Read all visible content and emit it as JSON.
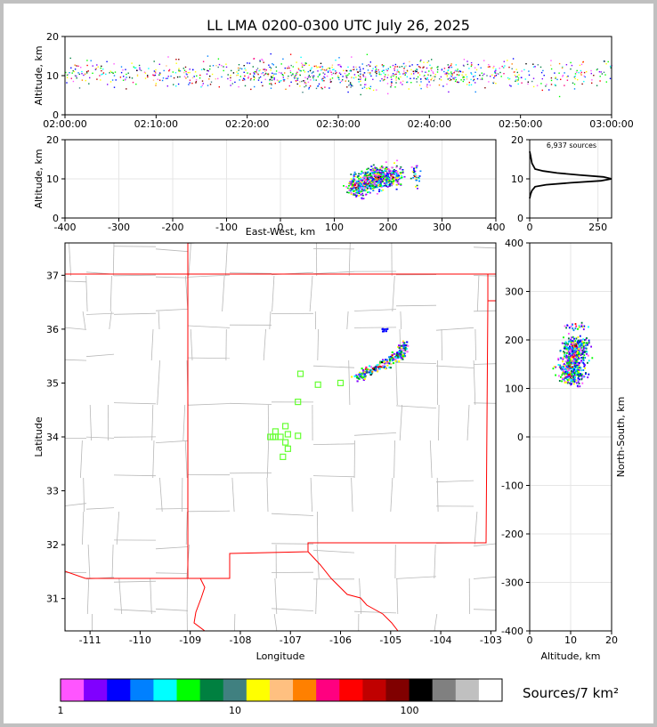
{
  "chart_data": [
    {
      "type": "scatter",
      "panel": "time-height",
      "title": "LL LMA 0200-0300 UTC July 26, 2025",
      "xlabel": "",
      "ylabel": "Altitude, km",
      "xlim": [
        "02:00:00",
        "03:00:00"
      ],
      "ylim": [
        0,
        20
      ],
      "x_ticks": [
        "02:00:00",
        "02:10:00",
        "02:20:00",
        "02:30:00",
        "02:40:00",
        "02:50:00",
        "03:00:00"
      ],
      "y_ticks": [
        "0",
        "10",
        "20"
      ],
      "points_summary": {
        "altitude_center_km": 10.5,
        "altitude_spread_km": [
          4,
          18
        ],
        "time_range": [
          "02:00:00",
          "03:00:00"
        ]
      }
    },
    {
      "type": "scatter",
      "panel": "east-west-height",
      "xlabel": "East-West, km",
      "ylabel": "Altitude, km",
      "xlim": [
        -400,
        400
      ],
      "ylim": [
        0,
        20
      ],
      "x_ticks": [
        "-400",
        "-300",
        "-200",
        "-100",
        "0",
        "100",
        "200",
        "300",
        "400"
      ],
      "y_ticks": [
        "0",
        "10",
        "20"
      ],
      "clusters": [
        {
          "x": 140,
          "y": 8.5
        },
        {
          "x": 160,
          "y": 9.5
        },
        {
          "x": 180,
          "y": 10.5
        },
        {
          "x": 205,
          "y": 11
        },
        {
          "x": 250,
          "y": 11
        }
      ]
    },
    {
      "type": "line",
      "panel": "altitude-histogram",
      "annotation": "6,937 sources",
      "xlim": [
        0,
        300
      ],
      "ylim": [
        0,
        20
      ],
      "x_ticks": [
        "0",
        "250"
      ],
      "y_ticks": [
        "0",
        "10",
        "20"
      ],
      "x": [
        0,
        3,
        8,
        20,
        60,
        150,
        260,
        300,
        270,
        180,
        100,
        50,
        20,
        8,
        3,
        0
      ],
      "y": [
        5,
        6,
        7,
        8,
        8.5,
        9,
        9.5,
        10,
        10.5,
        11,
        11.5,
        12,
        12.5,
        14,
        16,
        17
      ]
    },
    {
      "type": "scatter",
      "panel": "plan-view",
      "xlabel": "Longitude",
      "ylabel": "Latitude",
      "xlim": [
        -111.5,
        -102.9
      ],
      "ylim": [
        30.4,
        37.6
      ],
      "x_ticks": [
        "-111",
        "-110",
        "-109",
        "-108",
        "-107",
        "-106",
        "-105",
        "-104",
        "-103"
      ],
      "y_ticks": [
        "31",
        "32",
        "33",
        "34",
        "35",
        "36",
        "37"
      ],
      "sources_path": [
        [
          -105.7,
          35.1
        ],
        [
          -105.5,
          35.2
        ],
        [
          -105.3,
          35.3
        ],
        [
          -105.0,
          35.45
        ],
        [
          -104.8,
          35.55
        ],
        [
          -104.75,
          35.75
        ]
      ],
      "stations": [
        [
          -107.1,
          34.2
        ],
        [
          -107.3,
          34.1
        ],
        [
          -107.4,
          34.0
        ],
        [
          -107.3,
          34.0
        ],
        [
          -107.2,
          34.0
        ],
        [
          -107.05,
          34.05
        ],
        [
          -106.85,
          34.02
        ],
        [
          -107.1,
          33.9
        ],
        [
          -107.05,
          33.78
        ],
        [
          -107.15,
          33.63
        ],
        [
          -106.85,
          34.65
        ],
        [
          -106.8,
          35.17
        ],
        [
          -106.45,
          34.97
        ],
        [
          -106.0,
          35.0
        ],
        [
          -107.35,
          34.0
        ]
      ]
    },
    {
      "type": "scatter",
      "panel": "height-north-south",
      "xlabel": "Altitude, km",
      "ylabel": "North-South, km",
      "xlim": [
        0,
        20
      ],
      "ylim": [
        -400,
        400
      ],
      "x_ticks": [
        "0",
        "10",
        "20"
      ],
      "y_ticks": [
        "-400",
        "-300",
        "-200",
        "-100",
        "0",
        "100",
        "200",
        "300",
        "400"
      ],
      "clusters": [
        {
          "x": 10,
          "y": 130
        },
        {
          "x": 10,
          "y": 150
        },
        {
          "x": 10.5,
          "y": 170
        },
        {
          "x": 11,
          "y": 190
        },
        {
          "x": 11,
          "y": 230
        }
      ]
    }
  ],
  "colorbar": {
    "label": "Sources/7 km²",
    "tick_labels": [
      "1",
      "10",
      "100"
    ],
    "colors": [
      "#ff55ff",
      "#8000ff",
      "#0000ff",
      "#0080ff",
      "#00ffff",
      "#00ff00",
      "#008040",
      "#408080",
      "#ffff00",
      "#ffc080",
      "#ff8000",
      "#ff0080",
      "#ff0000",
      "#c00000",
      "#800000",
      "#000000",
      "#808080",
      "#c0c0c0",
      "#ffffff"
    ]
  }
}
